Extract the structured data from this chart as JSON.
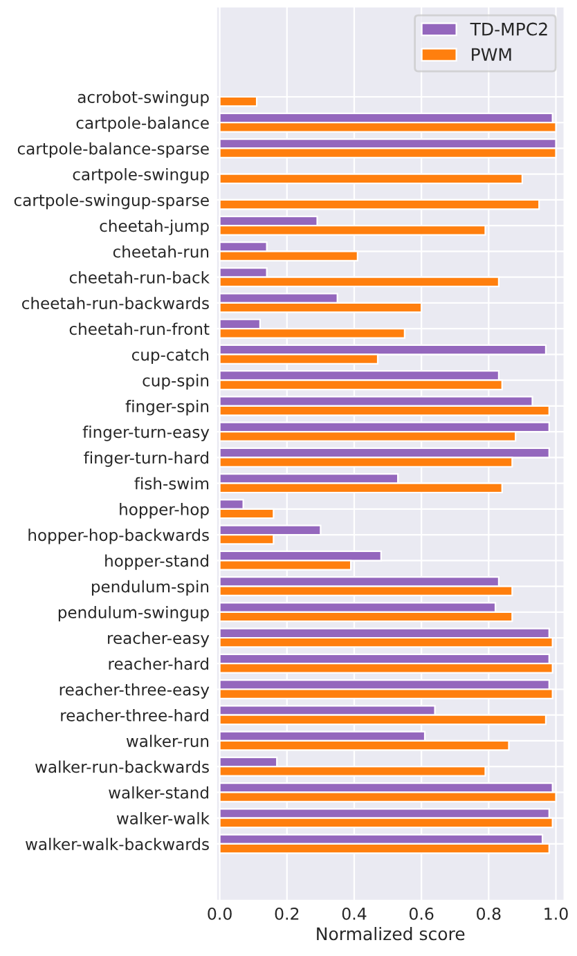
{
  "chart_data": {
    "type": "bar",
    "orientation": "horizontal",
    "xlabel": "Normalized score",
    "categories": [
      "acrobot-swingup",
      "cartpole-balance",
      "cartpole-balance-sparse",
      "cartpole-swingup",
      "cartpole-swingup-sparse",
      "cheetah-jump",
      "cheetah-run",
      "cheetah-run-back",
      "cheetah-run-backwards",
      "cheetah-run-front",
      "cup-catch",
      "cup-spin",
      "finger-spin",
      "finger-turn-easy",
      "finger-turn-hard",
      "fish-swim",
      "hopper-hop",
      "hopper-hop-backwards",
      "hopper-stand",
      "pendulum-spin",
      "pendulum-swingup",
      "reacher-easy",
      "reacher-hard",
      "reacher-three-easy",
      "reacher-three-hard",
      "walker-run",
      "walker-run-backwards",
      "walker-stand",
      "walker-walk",
      "walker-walk-backwards"
    ],
    "series": [
      {
        "name": "TD-MPC2",
        "color": "#9467bd",
        "values": [
          null,
          0.99,
          1.0,
          null,
          null,
          0.29,
          0.14,
          0.14,
          0.35,
          0.12,
          0.97,
          0.83,
          0.93,
          0.98,
          0.98,
          0.53,
          0.07,
          0.3,
          0.48,
          0.83,
          0.82,
          0.98,
          0.98,
          0.98,
          0.64,
          0.61,
          0.17,
          0.99,
          0.98,
          0.96
        ]
      },
      {
        "name": "PWM",
        "color": "#ff7f0e",
        "values": [
          0.11,
          1.0,
          1.0,
          0.9,
          0.95,
          0.79,
          0.41,
          0.83,
          0.6,
          0.55,
          0.47,
          0.84,
          0.98,
          0.88,
          0.87,
          0.84,
          0.16,
          0.16,
          0.39,
          0.87,
          0.87,
          0.99,
          0.99,
          0.99,
          0.97,
          0.86,
          0.79,
          1.0,
          0.99,
          0.98
        ]
      }
    ],
    "xlim": [
      -0.01,
      1.025
    ],
    "xticks": [
      {
        "value": 0,
        "label": "0.0"
      },
      {
        "value": 0.2,
        "label": "0.2"
      },
      {
        "value": 0.4,
        "label": "0.4"
      },
      {
        "value": 0.6,
        "label": "0.6"
      },
      {
        "value": 0.8,
        "label": "0.8"
      },
      {
        "value": 1,
        "label": "1.0"
      }
    ],
    "grid": true,
    "legend": "top right"
  }
}
